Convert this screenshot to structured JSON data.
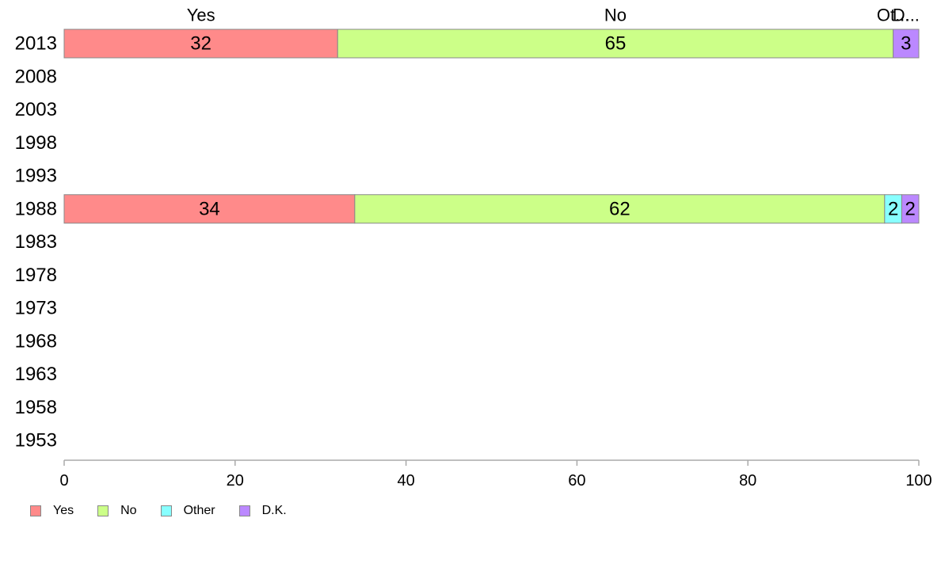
{
  "chart_data": {
    "type": "bar",
    "orientation": "horizontal",
    "stacked": true,
    "categories": [
      "2013",
      "2008",
      "2003",
      "1998",
      "1993",
      "1988",
      "1983",
      "1978",
      "1973",
      "1968",
      "1963",
      "1958",
      "1953"
    ],
    "series": [
      {
        "name": "Yes",
        "color": "#ff8a8a",
        "values": [
          32,
          null,
          null,
          null,
          null,
          34,
          null,
          null,
          null,
          null,
          null,
          null,
          null
        ]
      },
      {
        "name": "No",
        "color": "#ccff88",
        "values": [
          65,
          null,
          null,
          null,
          null,
          62,
          null,
          null,
          null,
          null,
          null,
          null,
          null
        ]
      },
      {
        "name": "Other",
        "color": "#88ffff",
        "values": [
          0,
          null,
          null,
          null,
          null,
          2,
          null,
          null,
          null,
          null,
          null,
          null,
          null
        ]
      },
      {
        "name": "D.K.",
        "color": "#bb88ff",
        "values": [
          3,
          null,
          null,
          null,
          null,
          2,
          null,
          null,
          null,
          null,
          null,
          null,
          null
        ]
      }
    ],
    "column_labels": [
      "Yes",
      "No",
      "Ot...",
      "D..."
    ],
    "xlim": [
      0,
      100
    ],
    "xticks": [
      0,
      20,
      40,
      60,
      80,
      100
    ],
    "title": "",
    "xlabel": "",
    "ylabel": "",
    "grid": false,
    "legend_position": "bottom-left"
  }
}
